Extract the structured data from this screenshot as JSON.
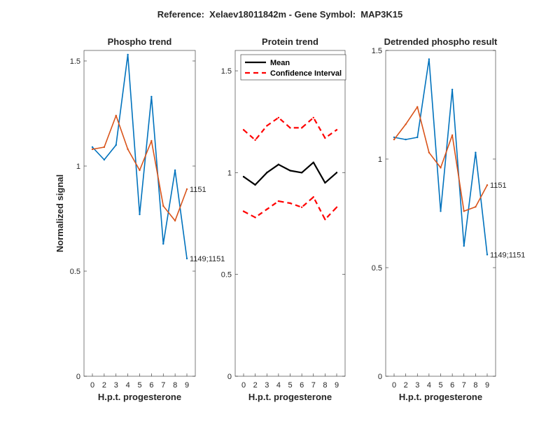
{
  "figure": {
    "title": "Reference:  Xelaev18011842m - Gene Symbol:  MAP3K15"
  },
  "chart_data": [
    {
      "type": "line",
      "title": "Phospho trend",
      "xlabel": "H.p.t. progesterone",
      "ylabel": "Normalized signal",
      "categories": [
        "0",
        "2",
        "3",
        "4",
        "5",
        "6",
        "7",
        "8",
        "9"
      ],
      "ylim": [
        0,
        1.55
      ],
      "yticks": [
        0,
        0.5,
        1,
        1.5
      ],
      "ytick_labels": [
        "0",
        "0.5",
        "1",
        "1.5"
      ],
      "series": [
        {
          "name": "1149;1151",
          "color": "#0072BD",
          "values": [
            1.09,
            1.03,
            1.1,
            1.53,
            0.77,
            1.33,
            0.63,
            0.98,
            0.56
          ]
        },
        {
          "name": "1151",
          "color": "#D95319",
          "values": [
            1.08,
            1.09,
            1.24,
            1.08,
            0.98,
            1.12,
            0.81,
            0.74,
            0.89
          ]
        }
      ]
    },
    {
      "type": "line",
      "title": "Protein trend",
      "xlabel": "H.p.t. progesterone",
      "ylabel": "",
      "categories": [
        "0",
        "2",
        "3",
        "4",
        "5",
        "6",
        "7",
        "8",
        "9"
      ],
      "ylim": [
        0,
        1.6
      ],
      "yticks": [
        0,
        0.5,
        1,
        1.5
      ],
      "ytick_labels": [
        "0",
        "0.5",
        "1",
        "1.5"
      ],
      "legend": {
        "location": "top-left",
        "entries": [
          "Mean",
          "Confidence Interval"
        ]
      },
      "series": [
        {
          "name": "Mean",
          "color": "#000000",
          "style": "solid",
          "values": [
            0.98,
            0.94,
            1.0,
            1.04,
            1.01,
            1.0,
            1.05,
            0.95,
            1.0
          ]
        },
        {
          "name": "Confidence Interval upper",
          "color": "#FF0000",
          "style": "dashed",
          "values": [
            1.21,
            1.16,
            1.23,
            1.27,
            1.22,
            1.22,
            1.27,
            1.17,
            1.21
          ]
        },
        {
          "name": "Confidence Interval lower",
          "color": "#FF0000",
          "style": "dashed",
          "values": [
            0.81,
            0.78,
            0.82,
            0.86,
            0.85,
            0.83,
            0.88,
            0.77,
            0.83
          ]
        }
      ]
    },
    {
      "type": "line",
      "title": "Detrended phospho result",
      "xlabel": "H.p.t. progesterone",
      "ylabel": "",
      "categories": [
        "0",
        "2",
        "3",
        "4",
        "5",
        "6",
        "7",
        "8",
        "9"
      ],
      "ylim": [
        0,
        1.5
      ],
      "yticks": [
        0,
        0.5,
        1,
        1.5
      ],
      "ytick_labels": [
        "0",
        "0.5",
        "1",
        "1.5"
      ],
      "series": [
        {
          "name": "1149;1151",
          "color": "#0072BD",
          "values": [
            1.1,
            1.09,
            1.1,
            1.46,
            0.76,
            1.32,
            0.6,
            1.03,
            0.56
          ]
        },
        {
          "name": "1151",
          "color": "#D95319",
          "values": [
            1.09,
            1.16,
            1.24,
            1.03,
            0.96,
            1.11,
            0.76,
            0.78,
            0.88
          ]
        }
      ]
    }
  ]
}
